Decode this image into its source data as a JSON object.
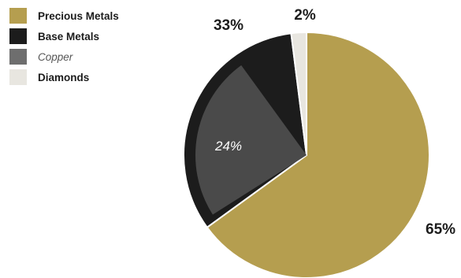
{
  "chart_data": {
    "type": "pie",
    "title": "",
    "series": [
      {
        "name": "Precious Metals",
        "value": 65,
        "label": "65%",
        "color": "#b59e4f"
      },
      {
        "name": "Base Metals",
        "value": 33,
        "label": "33%",
        "color": "#1c1c1c"
      },
      {
        "name": "Diamonds",
        "value": 2,
        "label": "2%",
        "color": "#e8e6e0"
      }
    ],
    "sub_series": [
      {
        "name": "Copper",
        "parent": "Base Metals",
        "value": 24,
        "label": "24%",
        "color": "#4a4a4a",
        "style": "italic"
      }
    ],
    "legend": {
      "position": "top-left",
      "items": [
        {
          "name": "Precious Metals",
          "color": "#b59e4f",
          "style": "bold"
        },
        {
          "name": "Base Metals",
          "color": "#1c1c1c",
          "style": "bold"
        },
        {
          "name": "Copper",
          "color": "#6e6e6e",
          "style": "italic"
        },
        {
          "name": "Diamonds",
          "color": "#e8e6e0",
          "style": "bold"
        }
      ]
    }
  }
}
